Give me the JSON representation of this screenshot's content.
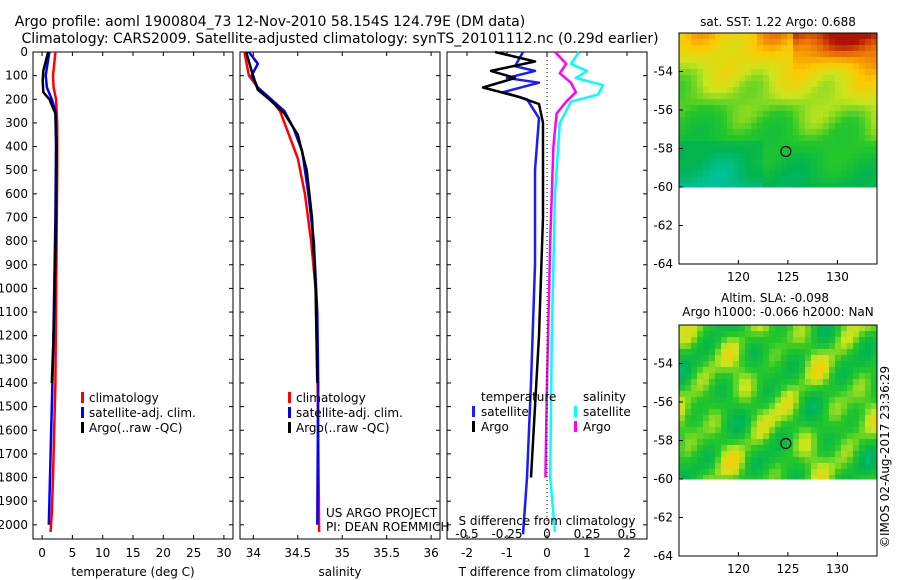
{
  "title_line1": "Argo profile: aoml 1900804_73 12-Nov-2010 58.154S 124.79E (DM data)",
  "title_line2": "Climatology: CARS2009. Satellite-adjusted climatology: synTS_20101112.nc (0.29d earlier)",
  "credit": "US ARGO PROJECT",
  "pi": "PI: DEAN ROEMMICH",
  "timestamp": "©IMOS 02-Aug-2017 23:36:29",
  "map1_title": "sat. SST: 1.22 Argo: 0.688",
  "map2_title1": "Altim. SLA: -0.098",
  "map2_title2": "Argo h1000: -0.066 h2000: NaN",
  "colors": {
    "climatology": "#ff0000",
    "satellite": "#0000ff",
    "argo": "#000000",
    "temp_sat": "#1a1aff",
    "sal_sat": "#00ffff",
    "sal_argo": "#ff00ff"
  },
  "chart_data": [
    {
      "type": "line",
      "xlabel": "temperature (deg C)",
      "ylabel": "",
      "xlim": [
        -1.5,
        31.5
      ],
      "ylim": [
        2060,
        0
      ],
      "xticks": [
        0,
        5,
        10,
        15,
        20,
        25,
        30
      ],
      "yticks": [
        0,
        100,
        200,
        300,
        400,
        500,
        600,
        700,
        800,
        900,
        1000,
        1100,
        1200,
        1300,
        1400,
        1500,
        1600,
        1700,
        1800,
        1900,
        2000
      ],
      "legend": [
        "climatology",
        "satellite-adj. clim.",
        "Argo(..raw -QC)"
      ],
      "legend_position": "lower-right",
      "series": [
        {
          "name": "climatology",
          "color_key": "climatology",
          "x": [
            2.2,
            2.0,
            1.8,
            1.9,
            2.3,
            2.5,
            2.5,
            2.4,
            2.3,
            2.2,
            2.0,
            1.8,
            1.6,
            1.4
          ],
          "y": [
            0,
            50,
            100,
            150,
            200,
            300,
            500,
            800,
            1100,
            1400,
            1600,
            1800,
            1950,
            2030
          ]
        },
        {
          "name": "satellite-adj. clim.",
          "color_key": "satellite",
          "x": [
            1.2,
            0.9,
            0.6,
            0.8,
            1.6,
            2.2,
            2.3,
            2.2,
            2.0,
            1.8,
            1.6,
            1.4,
            1.2,
            1.1
          ],
          "y": [
            0,
            50,
            100,
            150,
            200,
            250,
            400,
            700,
            1000,
            1300,
            1500,
            1700,
            1900,
            2000
          ]
        },
        {
          "name": "Argo(..raw -QC)",
          "color_key": "argo",
          "x": [
            1.0,
            0.6,
            0.2,
            0.1,
            0.2,
            1.2,
            2.2,
            2.4,
            2.3,
            2.1,
            1.9,
            1.6
          ],
          "y": [
            0,
            40,
            80,
            120,
            170,
            200,
            260,
            400,
            700,
            1000,
            1200,
            1400
          ]
        }
      ]
    },
    {
      "type": "line",
      "xlabel": "salinity",
      "ylabel": "",
      "xlim": [
        33.85,
        36.1
      ],
      "ylim": [
        2060,
        0
      ],
      "xticks": [
        34,
        34.5,
        35,
        35.5,
        36
      ],
      "legend": [
        "climatology",
        "satellite-adj. clim.",
        "Argo(..raw -QC)"
      ],
      "legend_position": "lower-right",
      "series": [
        {
          "name": "climatology",
          "color_key": "climatology",
          "x": [
            33.9,
            33.95,
            34.05,
            34.2,
            34.3,
            34.4,
            34.5,
            34.58,
            34.65,
            34.7,
            34.72,
            34.73,
            34.74
          ],
          "y": [
            0,
            100,
            150,
            200,
            250,
            350,
            450,
            600,
            800,
            1000,
            1300,
            1600,
            2030
          ]
        },
        {
          "name": "satellite-adj. clim.",
          "color_key": "satellite",
          "x": [
            33.95,
            34.05,
            33.98,
            34.05,
            34.2,
            34.35,
            34.45,
            34.55,
            34.62,
            34.68,
            34.72,
            34.73,
            34.72
          ],
          "y": [
            0,
            50,
            100,
            150,
            200,
            250,
            320,
            420,
            600,
            800,
            1100,
            1400,
            2000
          ]
        },
        {
          "name": "Argo(..raw -QC)",
          "color_key": "argo",
          "x": [
            33.92,
            33.98,
            34.05,
            34.18,
            34.35,
            34.5,
            34.6,
            34.66,
            34.7,
            34.72
          ],
          "y": [
            0,
            80,
            160,
            200,
            260,
            350,
            500,
            700,
            1000,
            1400
          ]
        }
      ]
    },
    {
      "type": "line",
      "xlabel": "T difference from climatology",
      "xlabel2": "S difference from climatology",
      "xlim": [
        -2.5,
        2.5
      ],
      "xlim2": [
        -0.625,
        0.625
      ],
      "ylim": [
        2060,
        0
      ],
      "xticks": [
        -2,
        -1,
        0,
        1,
        2
      ],
      "xticks2": [
        -0.5,
        -0.25,
        0,
        0.25,
        0.5
      ],
      "legend_groups": [
        "temperature",
        "salinity"
      ],
      "legend": [
        "satellite",
        "Argo",
        "satellite",
        "Argo"
      ],
      "series": [
        {
          "name": "satellite",
          "group": "temperature",
          "color_key": "temp_sat",
          "x": [
            -0.6,
            -0.8,
            -0.3,
            -1.0,
            -0.2,
            -1.1,
            -0.5,
            -0.2,
            -0.3,
            -0.3,
            -0.4,
            -0.5,
            -0.6
          ],
          "y": [
            0,
            60,
            80,
            110,
            130,
            170,
            200,
            280,
            500,
            900,
            1400,
            1800,
            2040
          ]
        },
        {
          "name": "Argo",
          "group": "temperature",
          "color_key": "argo",
          "x": [
            -1.3,
            -0.3,
            -1.4,
            -0.8,
            -1.6,
            -0.7,
            -0.2,
            -0.1,
            -0.1,
            -0.2,
            -0.4
          ],
          "y": [
            0,
            40,
            80,
            110,
            150,
            190,
            220,
            300,
            700,
            1200,
            1800
          ]
        },
        {
          "name": "satellite",
          "group": "salinity",
          "color_key": "sal_sat",
          "x": [
            0.2,
            0.15,
            0.25,
            0.18,
            0.35,
            0.32,
            0.15,
            0.08,
            0.05,
            0.03,
            0.02,
            0.05
          ],
          "y": [
            0,
            50,
            80,
            110,
            140,
            180,
            210,
            300,
            600,
            1200,
            1800,
            2030
          ]
        },
        {
          "name": "Argo",
          "group": "salinity",
          "color_key": "sal_argo",
          "x": [
            0.05,
            0.12,
            0.08,
            0.15,
            0.18,
            0.12,
            0.06,
            0.04,
            0.02,
            0.0,
            -0.01
          ],
          "y": [
            0,
            50,
            90,
            130,
            170,
            210,
            260,
            400,
            800,
            1400,
            1800
          ]
        }
      ]
    },
    {
      "type": "heatmap",
      "title": "sat. SST: 1.22 Argo: 0.688",
      "xlim": [
        114,
        134
      ],
      "ylim": [
        -64,
        -52
      ],
      "xticks": [
        120,
        125,
        130
      ],
      "yticks": [
        -54,
        -56,
        -58,
        -60,
        -62,
        -64
      ],
      "data_extent": {
        "lon": [
          114,
          134
        ],
        "lat": [
          -60,
          -52
        ]
      },
      "marker": {
        "lon": 124.79,
        "lat": -58.154
      }
    },
    {
      "type": "heatmap",
      "title": "Altim. SLA: -0.098",
      "xlim": [
        114,
        134
      ],
      "ylim": [
        -64,
        -52
      ],
      "xticks": [
        120,
        125,
        130
      ],
      "yticks": [
        -54,
        -56,
        -58,
        -60,
        -62,
        -64
      ],
      "data_extent": {
        "lon": [
          114,
          134
        ],
        "lat": [
          -60,
          -52
        ]
      },
      "marker": {
        "lon": 124.79,
        "lat": -58.154
      }
    }
  ]
}
